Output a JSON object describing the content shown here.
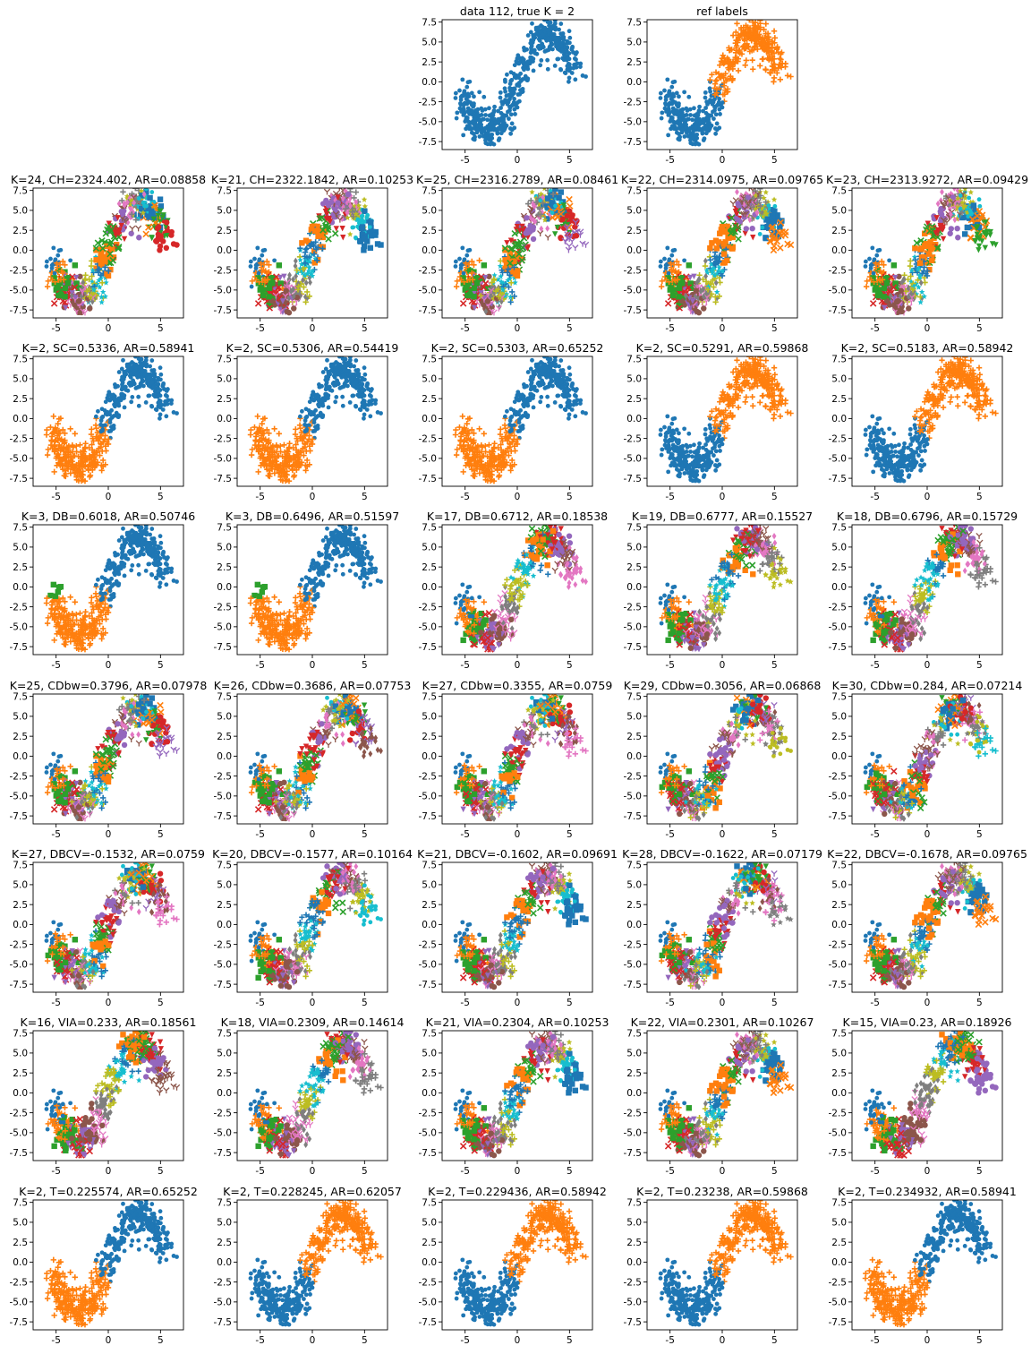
{
  "figure": {
    "rows": 8,
    "cols": 5,
    "palette": [
      "#1f77b4",
      "#ff7f0e",
      "#2ca02c",
      "#d62728",
      "#9467bd",
      "#8c564b",
      "#e377c2",
      "#7f7f7f",
      "#bcbd22",
      "#17becf"
    ],
    "markers": [
      "circle",
      "plus",
      "square",
      "x",
      "down-triangle",
      "pentagon",
      "thin-tri",
      "diamond",
      "plus",
      "star"
    ]
  },
  "chart_data": [
    {
      "panel": [
        0,
        2
      ],
      "type": "scatter",
      "title": "data 112, true K = 2",
      "style": "ground",
      "k": 1,
      "xlim": [
        -7.2,
        7.2
      ],
      "ylim": [
        -8.5,
        7.8
      ],
      "xticks": [
        "-5",
        "0",
        "5"
      ],
      "yticks": [
        "7.5",
        "5.0",
        "2.5",
        "0.0",
        "-2.5",
        "-5.0",
        "-7.5"
      ]
    },
    {
      "panel": [
        0,
        3
      ],
      "type": "scatter",
      "title": "ref labels",
      "style": "two",
      "k": 2,
      "first": "blue-left"
    },
    {
      "panel": [
        1,
        0
      ],
      "type": "scatter",
      "title": "K=24, CH=2324.402, AR=0.08858",
      "style": "many",
      "k": 24
    },
    {
      "panel": [
        1,
        1
      ],
      "type": "scatter",
      "title": "K=21, CH=2322.1842, AR=0.10253",
      "style": "many",
      "k": 21
    },
    {
      "panel": [
        1,
        2
      ],
      "type": "scatter",
      "title": "K=25, CH=2316.2789, AR=0.08461",
      "style": "many",
      "k": 25
    },
    {
      "panel": [
        1,
        3
      ],
      "type": "scatter",
      "title": "K=22, CH=2314.0975, AR=0.09765",
      "style": "many",
      "k": 22
    },
    {
      "panel": [
        1,
        4
      ],
      "type": "scatter",
      "title": "K=23, CH=2313.9272, AR=0.09429",
      "style": "many",
      "k": 23
    },
    {
      "panel": [
        2,
        0
      ],
      "type": "scatter",
      "title": "K=2, SC=0.5336, AR=0.58941",
      "style": "two",
      "k": 2,
      "first": "orange-left"
    },
    {
      "panel": [
        2,
        1
      ],
      "type": "scatter",
      "title": "K=2, SC=0.5306, AR=0.54419",
      "style": "two",
      "k": 2,
      "first": "orange-left"
    },
    {
      "panel": [
        2,
        2
      ],
      "type": "scatter",
      "title": "K=2, SC=0.5303, AR=0.65252",
      "style": "two",
      "k": 2,
      "first": "orange-left"
    },
    {
      "panel": [
        2,
        3
      ],
      "type": "scatter",
      "title": "K=2, SC=0.5291, AR=0.59868",
      "style": "two",
      "k": 2,
      "first": "blue-left"
    },
    {
      "panel": [
        2,
        4
      ],
      "type": "scatter",
      "title": "K=2, SC=0.5183, AR=0.58942",
      "style": "two",
      "k": 2,
      "first": "blue-left"
    },
    {
      "panel": [
        3,
        0
      ],
      "type": "scatter",
      "title": "K=3, DB=0.6018, AR=0.50746",
      "style": "three",
      "k": 3
    },
    {
      "panel": [
        3,
        1
      ],
      "type": "scatter",
      "title": "K=3, DB=0.6496, AR=0.51597",
      "style": "three",
      "k": 3
    },
    {
      "panel": [
        3,
        2
      ],
      "type": "scatter",
      "title": "K=17, DB=0.6712, AR=0.18538",
      "style": "many",
      "k": 17
    },
    {
      "panel": [
        3,
        3
      ],
      "type": "scatter",
      "title": "K=19, DB=0.6777, AR=0.15527",
      "style": "many",
      "k": 19
    },
    {
      "panel": [
        3,
        4
      ],
      "type": "scatter",
      "title": "K=18, DB=0.6796, AR=0.15729",
      "style": "many",
      "k": 18
    },
    {
      "panel": [
        4,
        0
      ],
      "type": "scatter",
      "title": "K=25, CDbw=0.3796, AR=0.07978",
      "style": "many",
      "k": 25
    },
    {
      "panel": [
        4,
        1
      ],
      "type": "scatter",
      "title": "K=26, CDbw=0.3686, AR=0.07753",
      "style": "many",
      "k": 26
    },
    {
      "panel": [
        4,
        2
      ],
      "type": "scatter",
      "title": "K=27, CDbw=0.3355, AR=0.0759",
      "style": "many",
      "k": 27
    },
    {
      "panel": [
        4,
        3
      ],
      "type": "scatter",
      "title": "K=29, CDbw=0.3056, AR=0.06868",
      "style": "many",
      "k": 29
    },
    {
      "panel": [
        4,
        4
      ],
      "type": "scatter",
      "title": "K=30, CDbw=0.284, AR=0.07214",
      "style": "many",
      "k": 30
    },
    {
      "panel": [
        5,
        0
      ],
      "type": "scatter",
      "title": "K=27, DBCV=-0.1532, AR=0.0759",
      "style": "many",
      "k": 27
    },
    {
      "panel": [
        5,
        1
      ],
      "type": "scatter",
      "title": "K=20, DBCV=-0.1577, AR=0.10164",
      "style": "many",
      "k": 20
    },
    {
      "panel": [
        5,
        2
      ],
      "type": "scatter",
      "title": "K=21, DBCV=-0.1602, AR=0.09691",
      "style": "many",
      "k": 21
    },
    {
      "panel": [
        5,
        3
      ],
      "type": "scatter",
      "title": "K=28, DBCV=-0.1622, AR=0.07179",
      "style": "many",
      "k": 28
    },
    {
      "panel": [
        5,
        4
      ],
      "type": "scatter",
      "title": "K=22, DBCV=-0.1678, AR=0.09765",
      "style": "many",
      "k": 22
    },
    {
      "panel": [
        6,
        0
      ],
      "type": "scatter",
      "title": "K=16, VIA=0.233, AR=0.18561",
      "style": "many",
      "k": 16
    },
    {
      "panel": [
        6,
        1
      ],
      "type": "scatter",
      "title": "K=18, VIA=0.2309, AR=0.14614",
      "style": "many",
      "k": 18
    },
    {
      "panel": [
        6,
        2
      ],
      "type": "scatter",
      "title": "K=21, VIA=0.2304, AR=0.10253",
      "style": "many",
      "k": 21
    },
    {
      "panel": [
        6,
        3
      ],
      "type": "scatter",
      "title": "K=22, VIA=0.2301, AR=0.10267",
      "style": "many",
      "k": 22
    },
    {
      "panel": [
        6,
        4
      ],
      "type": "scatter",
      "title": "K=15, VIA=0.23, AR=0.18926",
      "style": "many",
      "k": 15
    },
    {
      "panel": [
        7,
        0
      ],
      "type": "scatter",
      "title": "K=2, T=0.225574, AR=0.65252",
      "style": "two",
      "k": 2,
      "first": "orange-left"
    },
    {
      "panel": [
        7,
        1
      ],
      "type": "scatter",
      "title": "K=2, T=0.228245, AR=0.62057",
      "style": "two",
      "k": 2,
      "first": "blue-left"
    },
    {
      "panel": [
        7,
        2
      ],
      "type": "scatter",
      "title": "K=2, T=0.229436, AR=0.58942",
      "style": "two",
      "k": 2,
      "first": "blue-left"
    },
    {
      "panel": [
        7,
        3
      ],
      "type": "scatter",
      "title": "K=2, T=0.23238, AR=0.59868",
      "style": "two",
      "k": 2,
      "first": "blue-left"
    },
    {
      "panel": [
        7,
        4
      ],
      "type": "scatter",
      "title": "K=2, T=0.234932, AR=0.58941",
      "style": "two",
      "k": 2,
      "first": "orange-left"
    }
  ]
}
